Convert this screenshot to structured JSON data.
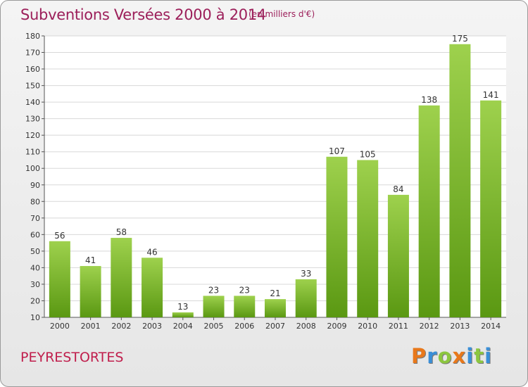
{
  "title": "Subventions Versées 2000 à 2014",
  "subtitle": "(en milliers d'€)",
  "commune": "PEYRESTORTES",
  "logo": {
    "text": "Proxiti",
    "colors": [
      "#e8781b",
      "#3a8fd8",
      "#8cc63f",
      "#e8781b",
      "#3a8fd8",
      "#8cc63f",
      "#3a8fd8"
    ]
  },
  "colors": {
    "bar_top": "#9ed14d",
    "bar_bottom": "#5a9812",
    "title": "#9c1f5a",
    "commune": "#c01e4c"
  },
  "chart_data": {
    "type": "bar",
    "categories": [
      "2000",
      "2001",
      "2002",
      "2003",
      "2004",
      "2005",
      "2006",
      "2007",
      "2008",
      "2009",
      "2010",
      "2011",
      "2012",
      "2013",
      "2014"
    ],
    "values": [
      56,
      41,
      58,
      46,
      13,
      23,
      23,
      21,
      33,
      107,
      105,
      84,
      138,
      175,
      141
    ],
    "ylim": [
      10,
      180
    ],
    "yticks": [
      10,
      20,
      30,
      40,
      50,
      60,
      70,
      80,
      90,
      100,
      110,
      120,
      130,
      140,
      150,
      160,
      170,
      180
    ],
    "grid": true,
    "xlabel": "",
    "ylabel": ""
  }
}
